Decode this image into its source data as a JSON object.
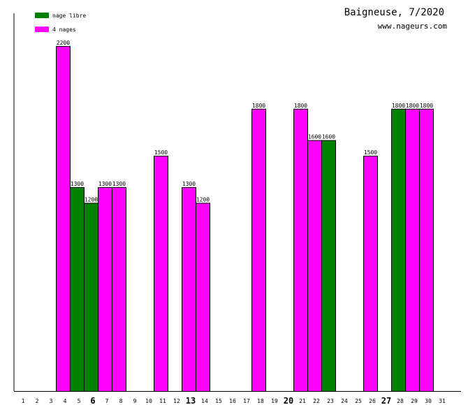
{
  "chart_data": {
    "type": "bar",
    "title": "Baigneuse, 7/2020",
    "subtitle": "www.nageurs.com",
    "xlabel": "",
    "ylabel": "",
    "ylim": [
      0,
      2400
    ],
    "grid": false,
    "legend_placement": "top-left",
    "categories": [
      "1",
      "2",
      "3",
      "4",
      "5",
      "6",
      "7",
      "8",
      "9",
      "10",
      "11",
      "12",
      "13",
      "14",
      "15",
      "16",
      "17",
      "18",
      "19",
      "20",
      "21",
      "22",
      "23",
      "24",
      "25",
      "26",
      "27",
      "28",
      "29",
      "30",
      "31"
    ],
    "bold_categories": [
      "6",
      "13",
      "20",
      "27"
    ],
    "series": [
      {
        "name": "nage libre",
        "color": "#008000",
        "values": [
          0,
          0,
          0,
          1300,
          1200,
          0,
          0,
          0,
          0,
          0,
          0,
          0,
          0,
          0,
          0,
          0,
          0,
          0,
          0,
          0,
          0,
          1600,
          0,
          0,
          0,
          0,
          1800,
          0,
          0,
          0,
          0
        ]
      },
      {
        "name": "4 nages",
        "color": "#ff00ff",
        "values": [
          0,
          0,
          2200,
          0,
          0,
          1300,
          1300,
          0,
          0,
          1500,
          0,
          1300,
          1200,
          0,
          0,
          0,
          1800,
          0,
          0,
          1800,
          1600,
          0,
          0,
          0,
          1500,
          0,
          0,
          1800,
          1800,
          0,
          0
        ]
      }
    ]
  }
}
